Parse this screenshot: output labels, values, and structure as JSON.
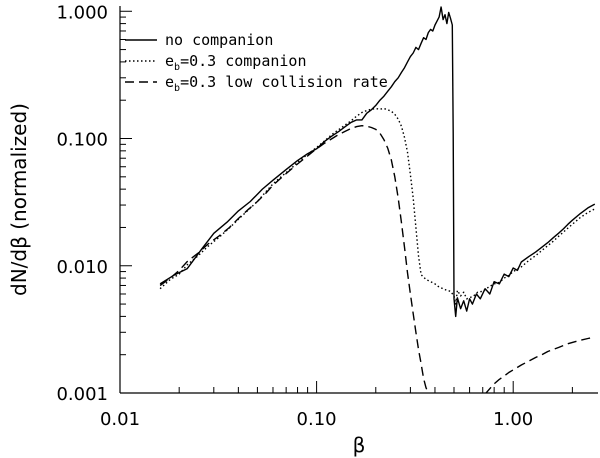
{
  "chart_data": {
    "type": "line",
    "scale": {
      "x": "log",
      "y": "log"
    },
    "xlim": [
      0.01,
      2.7
    ],
    "ylim": [
      0.001,
      1.1
    ],
    "xlabel": "β",
    "ylabel": "dN/dβ  (normalized)",
    "x_tick_values": [
      0.01,
      0.1,
      1.0
    ],
    "x_tick_labels": [
      "0.01",
      "0.10",
      "1.00"
    ],
    "y_tick_values": [
      0.001,
      0.01,
      0.1,
      1.0
    ],
    "y_tick_labels": [
      "0.001",
      "0.010",
      "0.100",
      "1.000"
    ],
    "legend_position": "top-left",
    "series": [
      {
        "name": "no companion",
        "label_text": "no companion",
        "style": "solid",
        "points": [
          [
            0.016,
            0.0072
          ],
          [
            0.019,
            0.0085
          ],
          [
            0.022,
            0.0095
          ],
          [
            0.026,
            0.0135
          ],
          [
            0.03,
            0.018
          ],
          [
            0.035,
            0.022
          ],
          [
            0.04,
            0.027
          ],
          [
            0.046,
            0.032
          ],
          [
            0.053,
            0.04
          ],
          [
            0.06,
            0.047
          ],
          [
            0.07,
            0.057
          ],
          [
            0.08,
            0.067
          ],
          [
            0.09,
            0.076
          ],
          [
            0.1,
            0.083
          ],
          [
            0.11,
            0.095
          ],
          [
            0.12,
            0.105
          ],
          [
            0.13,
            0.114
          ],
          [
            0.14,
            0.124
          ],
          [
            0.15,
            0.134
          ],
          [
            0.16,
            0.14
          ],
          [
            0.17,
            0.14
          ],
          [
            0.18,
            0.158
          ],
          [
            0.19,
            0.168
          ],
          [
            0.2,
            0.182
          ],
          [
            0.21,
            0.2
          ],
          [
            0.22,
            0.215
          ],
          [
            0.23,
            0.235
          ],
          [
            0.24,
            0.255
          ],
          [
            0.25,
            0.28
          ],
          [
            0.26,
            0.3
          ],
          [
            0.27,
            0.33
          ],
          [
            0.28,
            0.36
          ],
          [
            0.29,
            0.4
          ],
          [
            0.3,
            0.44
          ],
          [
            0.31,
            0.47
          ],
          [
            0.32,
            0.52
          ],
          [
            0.33,
            0.5
          ],
          [
            0.34,
            0.56
          ],
          [
            0.35,
            0.62
          ],
          [
            0.36,
            0.6
          ],
          [
            0.37,
            0.68
          ],
          [
            0.38,
            0.72
          ],
          [
            0.39,
            0.7
          ],
          [
            0.4,
            0.78
          ],
          [
            0.41,
            0.84
          ],
          [
            0.42,
            0.9
          ],
          [
            0.43,
            1.08
          ],
          [
            0.44,
            0.86
          ],
          [
            0.45,
            0.94
          ],
          [
            0.46,
            0.8
          ],
          [
            0.47,
            0.98
          ],
          [
            0.48,
            0.88
          ],
          [
            0.49,
            0.78
          ],
          [
            0.495,
            0.11
          ],
          [
            0.5,
            0.0055
          ],
          [
            0.51,
            0.004
          ],
          [
            0.52,
            0.0056
          ],
          [
            0.54,
            0.0046
          ],
          [
            0.56,
            0.0053
          ],
          [
            0.58,
            0.0044
          ],
          [
            0.6,
            0.0055
          ],
          [
            0.62,
            0.005
          ],
          [
            0.65,
            0.006
          ],
          [
            0.68,
            0.0055
          ],
          [
            0.72,
            0.0066
          ],
          [
            0.76,
            0.006
          ],
          [
            0.8,
            0.0075
          ],
          [
            0.85,
            0.0072
          ],
          [
            0.9,
            0.0086
          ],
          [
            0.95,
            0.0082
          ],
          [
            1.0,
            0.0096
          ],
          [
            1.05,
            0.0092
          ],
          [
            1.1,
            0.0107
          ],
          [
            1.2,
            0.0118
          ],
          [
            1.3,
            0.0128
          ],
          [
            1.4,
            0.014
          ],
          [
            1.5,
            0.0152
          ],
          [
            1.6,
            0.0166
          ],
          [
            1.7,
            0.018
          ],
          [
            1.8,
            0.0195
          ],
          [
            1.9,
            0.0212
          ],
          [
            2.0,
            0.0228
          ],
          [
            2.2,
            0.0258
          ],
          [
            2.4,
            0.0285
          ],
          [
            2.6,
            0.0305
          ]
        ]
      },
      {
        "name": "eb=0.3 companion",
        "label_text": "e",
        "label_sub": "b",
        "label_rest": "=0.3 companion",
        "style": "dotted",
        "points": [
          [
            0.016,
            0.0066
          ],
          [
            0.018,
            0.0078
          ],
          [
            0.02,
            0.0086
          ],
          [
            0.022,
            0.0102
          ],
          [
            0.025,
            0.012
          ],
          [
            0.028,
            0.0142
          ],
          [
            0.032,
            0.0168
          ],
          [
            0.036,
            0.0198
          ],
          [
            0.04,
            0.0232
          ],
          [
            0.045,
            0.0275
          ],
          [
            0.05,
            0.032
          ],
          [
            0.055,
            0.038
          ],
          [
            0.06,
            0.044
          ],
          [
            0.065,
            0.049
          ],
          [
            0.07,
            0.054
          ],
          [
            0.075,
            0.059
          ],
          [
            0.08,
            0.065
          ],
          [
            0.085,
            0.07
          ],
          [
            0.09,
            0.075
          ],
          [
            0.095,
            0.08
          ],
          [
            0.1,
            0.085
          ],
          [
            0.11,
            0.096
          ],
          [
            0.12,
            0.108
          ],
          [
            0.13,
            0.118
          ],
          [
            0.14,
            0.128
          ],
          [
            0.15,
            0.138
          ],
          [
            0.16,
            0.15
          ],
          [
            0.17,
            0.16
          ],
          [
            0.18,
            0.166
          ],
          [
            0.19,
            0.17
          ],
          [
            0.2,
            0.172
          ],
          [
            0.21,
            0.17
          ],
          [
            0.22,
            0.172
          ],
          [
            0.23,
            0.168
          ],
          [
            0.24,
            0.164
          ],
          [
            0.25,
            0.155
          ],
          [
            0.26,
            0.142
          ],
          [
            0.27,
            0.125
          ],
          [
            0.28,
            0.102
          ],
          [
            0.29,
            0.078
          ],
          [
            0.3,
            0.052
          ],
          [
            0.31,
            0.034
          ],
          [
            0.32,
            0.02
          ],
          [
            0.33,
            0.012
          ],
          [
            0.34,
            0.0085
          ],
          [
            0.36,
            0.0078
          ],
          [
            0.38,
            0.0075
          ],
          [
            0.4,
            0.0072
          ],
          [
            0.42,
            0.0068
          ],
          [
            0.44,
            0.0066
          ],
          [
            0.46,
            0.0064
          ],
          [
            0.48,
            0.0063
          ],
          [
            0.5,
            0.0058
          ],
          [
            0.51,
            0.005
          ],
          [
            0.52,
            0.0064
          ],
          [
            0.54,
            0.0058
          ],
          [
            0.56,
            0.0062
          ],
          [
            0.58,
            0.0055
          ],
          [
            0.6,
            0.0056
          ],
          [
            0.63,
            0.0058
          ],
          [
            0.66,
            0.0062
          ],
          [
            0.7,
            0.0063
          ],
          [
            0.75,
            0.0068
          ],
          [
            0.8,
            0.0072
          ],
          [
            0.85,
            0.0074
          ],
          [
            0.9,
            0.008
          ],
          [
            0.95,
            0.0084
          ],
          [
            1.0,
            0.009
          ],
          [
            1.1,
            0.0098
          ],
          [
            1.2,
            0.011
          ],
          [
            1.3,
            0.012
          ],
          [
            1.4,
            0.0132
          ],
          [
            1.5,
            0.0144
          ],
          [
            1.6,
            0.0156
          ],
          [
            1.7,
            0.017
          ],
          [
            1.8,
            0.0184
          ],
          [
            1.9,
            0.0198
          ],
          [
            2.0,
            0.0212
          ],
          [
            2.2,
            0.024
          ],
          [
            2.4,
            0.0262
          ],
          [
            2.6,
            0.028
          ]
        ]
      },
      {
        "name": "eb=0.3 low collision rate",
        "label_text": "e",
        "label_sub": "b",
        "label_rest": "=0.3 low collision rate",
        "style": "dashed",
        "points": [
          [
            0.016,
            0.007
          ],
          [
            0.018,
            0.008
          ],
          [
            0.02,
            0.0092
          ],
          [
            0.022,
            0.0108
          ],
          [
            0.025,
            0.0126
          ],
          [
            0.028,
            0.0148
          ],
          [
            0.032,
            0.0172
          ],
          [
            0.036,
            0.02
          ],
          [
            0.04,
            0.0235
          ],
          [
            0.045,
            0.0278
          ],
          [
            0.05,
            0.032
          ],
          [
            0.055,
            0.037
          ],
          [
            0.06,
            0.043
          ],
          [
            0.065,
            0.048
          ],
          [
            0.07,
            0.053
          ],
          [
            0.075,
            0.058
          ],
          [
            0.08,
            0.063
          ],
          [
            0.085,
            0.068
          ],
          [
            0.09,
            0.073
          ],
          [
            0.095,
            0.078
          ],
          [
            0.1,
            0.083
          ],
          [
            0.11,
            0.092
          ],
          [
            0.12,
            0.1
          ],
          [
            0.13,
            0.108
          ],
          [
            0.14,
            0.114
          ],
          [
            0.15,
            0.12
          ],
          [
            0.16,
            0.124
          ],
          [
            0.17,
            0.126
          ],
          [
            0.18,
            0.125
          ],
          [
            0.19,
            0.122
          ],
          [
            0.2,
            0.118
          ],
          [
            0.21,
            0.11
          ],
          [
            0.22,
            0.098
          ],
          [
            0.23,
            0.084
          ],
          [
            0.24,
            0.068
          ],
          [
            0.25,
            0.05
          ],
          [
            0.26,
            0.034
          ],
          [
            0.27,
            0.022
          ],
          [
            0.28,
            0.014
          ],
          [
            0.29,
            0.0088
          ],
          [
            0.3,
            0.006
          ],
          [
            0.31,
            0.0042
          ],
          [
            0.32,
            0.003
          ],
          [
            0.33,
            0.0022
          ],
          [
            0.34,
            0.0017
          ],
          [
            0.35,
            0.0013
          ],
          [
            0.36,
            0.0011
          ],
          [
            0.37,
            0.001
          ]
        ],
        "tail_points": [
          [
            0.72,
            0.00098
          ],
          [
            0.76,
            0.00108
          ],
          [
            0.8,
            0.00118
          ],
          [
            0.85,
            0.00128
          ],
          [
            0.9,
            0.00136
          ],
          [
            0.95,
            0.00145
          ],
          [
            1.0,
            0.00152
          ],
          [
            1.1,
            0.00166
          ],
          [
            1.2,
            0.00178
          ],
          [
            1.3,
            0.0019
          ],
          [
            1.4,
            0.002
          ],
          [
            1.5,
            0.00212
          ],
          [
            1.6,
            0.0022
          ],
          [
            1.7,
            0.00228
          ],
          [
            1.8,
            0.00236
          ],
          [
            1.9,
            0.00244
          ],
          [
            2.0,
            0.0025
          ],
          [
            2.2,
            0.0026
          ],
          [
            2.4,
            0.00268
          ],
          [
            2.6,
            0.00275
          ]
        ]
      }
    ]
  }
}
